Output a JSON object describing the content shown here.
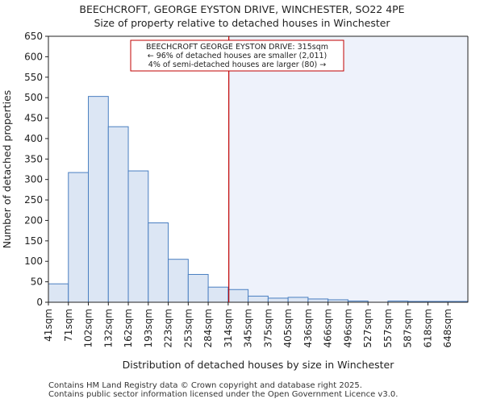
{
  "chart_data": {
    "type": "bar",
    "title": "BEECHCROFT, GEORGE EYSTON DRIVE, WINCHESTER, SO22 4PE",
    "subtitle": "Size of property relative to detached houses in Winchester",
    "xlabel": "Distribution of detached houses by size in Winchester",
    "ylabel": "Number of detached properties",
    "ylim": [
      0,
      650
    ],
    "yticks": [
      0,
      50,
      100,
      150,
      200,
      250,
      300,
      350,
      400,
      450,
      500,
      550,
      600,
      650
    ],
    "categories": [
      "41sqm",
      "71sqm",
      "102sqm",
      "132sqm",
      "162sqm",
      "193sqm",
      "223sqm",
      "253sqm",
      "284sqm",
      "314sqm",
      "345sqm",
      "375sqm",
      "405sqm",
      "436sqm",
      "466sqm",
      "496sqm",
      "527sqm",
      "557sqm",
      "587sqm",
      "618sqm",
      "648sqm"
    ],
    "values": [
      45,
      317,
      503,
      429,
      321,
      194,
      105,
      68,
      37,
      31,
      15,
      10,
      12,
      8,
      6,
      3,
      0,
      3,
      2,
      2,
      2
    ],
    "marker": {
      "value_sqm": 315,
      "color": "#c00000",
      "label_lines": [
        "BEECHCROFT GEORGE EYSTON DRIVE: 315sqm",
        "← 96% of detached houses are smaller (2,011)",
        "4% of semi-detached houses are larger (80) →"
      ]
    },
    "highlight_color": "#eef2fb",
    "bar_fill": "#dce6f4",
    "bar_edge": "#4a7fc1"
  },
  "footer": {
    "line1": "Contains HM Land Registry data © Crown copyright and database right 2025.",
    "line2": "Contains public sector information licensed under the Open Government Licence v3.0."
  }
}
